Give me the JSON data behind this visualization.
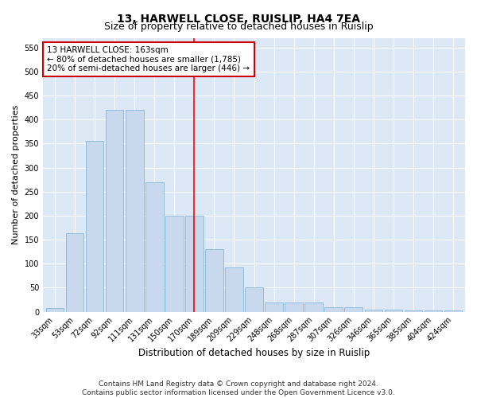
{
  "title": "13, HARWELL CLOSE, RUISLIP, HA4 7EA",
  "subtitle": "Size of property relative to detached houses in Ruislip",
  "xlabel": "Distribution of detached houses by size in Ruislip",
  "ylabel": "Number of detached properties",
  "categories": [
    "33sqm",
    "53sqm",
    "72sqm",
    "92sqm",
    "111sqm",
    "131sqm",
    "150sqm",
    "170sqm",
    "189sqm",
    "209sqm",
    "229sqm",
    "248sqm",
    "268sqm",
    "287sqm",
    "307sqm",
    "326sqm",
    "346sqm",
    "365sqm",
    "385sqm",
    "404sqm",
    "424sqm"
  ],
  "values": [
    8,
    163,
    355,
    420,
    420,
    270,
    200,
    200,
    130,
    93,
    50,
    20,
    20,
    20,
    9,
    9,
    5,
    5,
    3,
    3,
    3
  ],
  "bar_color": "#c8d9ee",
  "bar_edge_color": "#7aadd4",
  "vline_x_index": 7,
  "annotation_text": "13 HARWELL CLOSE: 163sqm\n← 80% of detached houses are smaller (1,785)\n20% of semi-detached houses are larger (446) →",
  "annotation_box_color": "#ffffff",
  "annotation_box_edge": "#cc0000",
  "ylim": [
    0,
    570
  ],
  "yticks": [
    0,
    50,
    100,
    150,
    200,
    250,
    300,
    350,
    400,
    450,
    500,
    550
  ],
  "footer": "Contains HM Land Registry data © Crown copyright and database right 2024.\nContains public sector information licensed under the Open Government Licence v3.0.",
  "plot_bg_color": "#dce8f5",
  "fig_bg_color": "#ffffff",
  "title_fontsize": 10,
  "subtitle_fontsize": 9,
  "xlabel_fontsize": 8.5,
  "ylabel_fontsize": 8,
  "tick_fontsize": 7,
  "footer_fontsize": 6.5,
  "annotation_fontsize": 7.5
}
